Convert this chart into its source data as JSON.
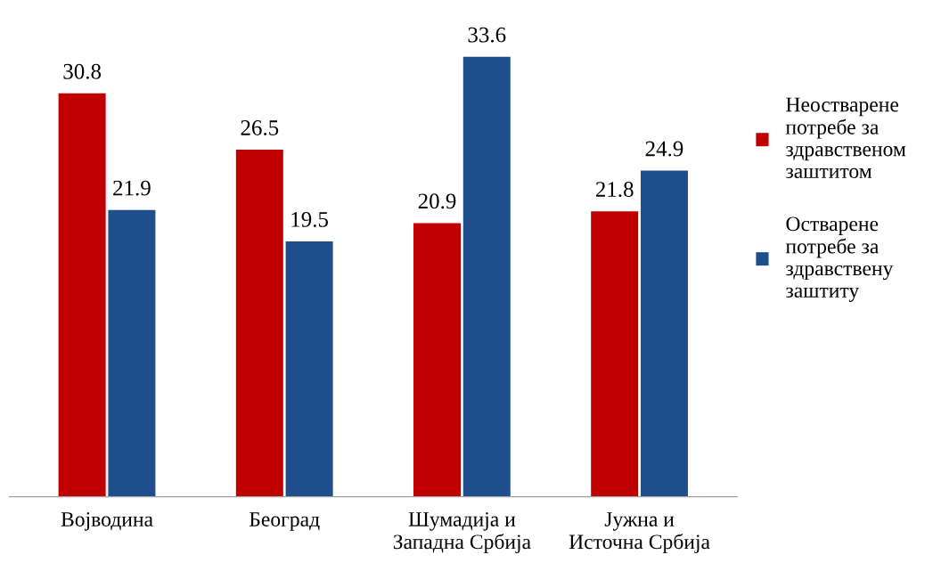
{
  "chart_data": {
    "type": "bar",
    "categories": [
      "Војводина",
      "Београд",
      "Шумадија и\nЗападна Србија",
      "Јужна и\nИсточна Србија"
    ],
    "series": [
      {
        "name": "Неостварене\nпотребе за\nздравственом\nзаштитом",
        "color": "#c00000",
        "values": [
          30.8,
          26.5,
          20.9,
          21.8
        ]
      },
      {
        "name": "Остварене\nпотребе за\nздравствену\nзаштиту",
        "color": "#1f4e8c",
        "values": [
          21.9,
          19.5,
          33.6,
          24.9
        ]
      }
    ],
    "data_labels": true,
    "legend": "right"
  }
}
